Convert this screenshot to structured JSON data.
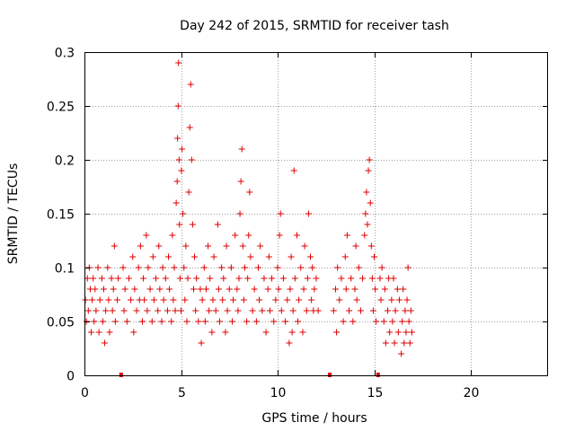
{
  "chart_data": {
    "type": "scatter",
    "title": "Day 242 of 2015, SRMTID for receiver tash",
    "xlabel": "GPS time / hours",
    "ylabel": "SRMTID / TECUs",
    "xlim": [
      0,
      24
    ],
    "ylim": [
      0,
      0.3
    ],
    "xticks": [
      0,
      5,
      10,
      15,
      20
    ],
    "xtick_labels": [
      "0",
      "5",
      "10",
      "15",
      "20"
    ],
    "yticks": [
      0,
      0.05,
      0.1,
      0.15,
      0.2,
      0.25,
      0.3
    ],
    "ytick_labels": [
      "0",
      "0.05",
      "0.1",
      "0.15",
      "0.2",
      "0.25",
      "0.3"
    ],
    "grid": true,
    "marker": "plus",
    "color": "#e00000",
    "gap_markers_x": [
      1.9,
      12.7,
      15.2
    ],
    "series": [
      {
        "name": "SRMTID",
        "points": [
          [
            0.05,
            0.07
          ],
          [
            0.1,
            0.05
          ],
          [
            0.15,
            0.09
          ],
          [
            0.2,
            0.06
          ],
          [
            0.25,
            0.1
          ],
          [
            0.3,
            0.08
          ],
          [
            0.35,
            0.04
          ],
          [
            0.4,
            0.07
          ],
          [
            0.45,
            0.09
          ],
          [
            0.5,
            0.05
          ],
          [
            0.55,
            0.08
          ],
          [
            0.6,
            0.06
          ],
          [
            0.7,
            0.1
          ],
          [
            0.75,
            0.04
          ],
          [
            0.8,
            0.07
          ],
          [
            0.9,
            0.09
          ],
          [
            0.95,
            0.05
          ],
          [
            1.0,
            0.08
          ],
          [
            1.05,
            0.03
          ],
          [
            1.1,
            0.06
          ],
          [
            1.2,
            0.1
          ],
          [
            1.25,
            0.07
          ],
          [
            1.3,
            0.04
          ],
          [
            1.4,
            0.09
          ],
          [
            1.45,
            0.06
          ],
          [
            1.5,
            0.08
          ],
          [
            1.55,
            0.12
          ],
          [
            1.6,
            0.05
          ],
          [
            1.7,
            0.07
          ],
          [
            1.75,
            0.09
          ],
          [
            2.0,
            0.1
          ],
          [
            2.05,
            0.06
          ],
          [
            2.1,
            0.08
          ],
          [
            2.2,
            0.05
          ],
          [
            2.3,
            0.09
          ],
          [
            2.4,
            0.07
          ],
          [
            2.5,
            0.11
          ],
          [
            2.55,
            0.04
          ],
          [
            2.6,
            0.08
          ],
          [
            2.7,
            0.06
          ],
          [
            2.8,
            0.1
          ],
          [
            2.85,
            0.07
          ],
          [
            2.9,
            0.12
          ],
          [
            3.0,
            0.05
          ],
          [
            3.05,
            0.09
          ],
          [
            3.1,
            0.07
          ],
          [
            3.2,
            0.13
          ],
          [
            3.25,
            0.06
          ],
          [
            3.3,
            0.1
          ],
          [
            3.4,
            0.08
          ],
          [
            3.5,
            0.05
          ],
          [
            3.55,
            0.11
          ],
          [
            3.6,
            0.07
          ],
          [
            3.7,
            0.09
          ],
          [
            3.8,
            0.06
          ],
          [
            3.85,
            0.12
          ],
          [
            3.9,
            0.08
          ],
          [
            4.0,
            0.05
          ],
          [
            4.05,
            0.1
          ],
          [
            4.1,
            0.07
          ],
          [
            4.2,
            0.09
          ],
          [
            4.3,
            0.06
          ],
          [
            4.35,
            0.11
          ],
          [
            4.4,
            0.08
          ],
          [
            4.5,
            0.05
          ],
          [
            4.55,
            0.13
          ],
          [
            4.6,
            0.07
          ],
          [
            4.65,
            0.1
          ],
          [
            4.7,
            0.06
          ],
          [
            4.75,
            0.16
          ],
          [
            4.8,
            0.18
          ],
          [
            4.82,
            0.22
          ],
          [
            4.85,
            0.25
          ],
          [
            4.87,
            0.29
          ],
          [
            4.9,
            0.2
          ],
          [
            4.92,
            0.14
          ],
          [
            4.95,
            0.09
          ],
          [
            5.0,
            0.06
          ],
          [
            5.02,
            0.19
          ],
          [
            5.05,
            0.21
          ],
          [
            5.1,
            0.15
          ],
          [
            5.15,
            0.1
          ],
          [
            5.2,
            0.07
          ],
          [
            5.25,
            0.12
          ],
          [
            5.3,
            0.05
          ],
          [
            5.35,
            0.09
          ],
          [
            5.4,
            0.17
          ],
          [
            5.45,
            0.23
          ],
          [
            5.5,
            0.27
          ],
          [
            5.55,
            0.2
          ],
          [
            5.6,
            0.14
          ],
          [
            5.65,
            0.08
          ],
          [
            5.7,
            0.11
          ],
          [
            5.75,
            0.06
          ],
          [
            5.8,
            0.09
          ],
          [
            5.9,
            0.05
          ],
          [
            6.0,
            0.08
          ],
          [
            6.05,
            0.03
          ],
          [
            6.1,
            0.07
          ],
          [
            6.2,
            0.1
          ],
          [
            6.25,
            0.05
          ],
          [
            6.3,
            0.08
          ],
          [
            6.4,
            0.12
          ],
          [
            6.45,
            0.06
          ],
          [
            6.5,
            0.09
          ],
          [
            6.6,
            0.04
          ],
          [
            6.65,
            0.07
          ],
          [
            6.7,
            0.11
          ],
          [
            6.8,
            0.06
          ],
          [
            6.9,
            0.14
          ],
          [
            6.95,
            0.08
          ],
          [
            7.0,
            0.05
          ],
          [
            7.1,
            0.1
          ],
          [
            7.15,
            0.07
          ],
          [
            7.2,
            0.09
          ],
          [
            7.3,
            0.04
          ],
          [
            7.35,
            0.12
          ],
          [
            7.4,
            0.06
          ],
          [
            7.5,
            0.08
          ],
          [
            7.6,
            0.1
          ],
          [
            7.65,
            0.05
          ],
          [
            7.7,
            0.07
          ],
          [
            7.8,
            0.13
          ],
          [
            7.9,
            0.08
          ],
          [
            7.95,
            0.06
          ],
          [
            8.0,
            0.09
          ],
          [
            8.05,
            0.15
          ],
          [
            8.1,
            0.18
          ],
          [
            8.15,
            0.21
          ],
          [
            8.2,
            0.12
          ],
          [
            8.25,
            0.07
          ],
          [
            8.3,
            0.1
          ],
          [
            8.4,
            0.05
          ],
          [
            8.45,
            0.09
          ],
          [
            8.5,
            0.13
          ],
          [
            8.55,
            0.17
          ],
          [
            8.6,
            0.11
          ],
          [
            8.7,
            0.06
          ],
          [
            8.8,
            0.08
          ],
          [
            8.9,
            0.05
          ],
          [
            9.0,
            0.1
          ],
          [
            9.05,
            0.07
          ],
          [
            9.1,
            0.12
          ],
          [
            9.2,
            0.06
          ],
          [
            9.3,
            0.09
          ],
          [
            9.4,
            0.04
          ],
          [
            9.5,
            0.08
          ],
          [
            9.55,
            0.11
          ],
          [
            9.6,
            0.06
          ],
          [
            9.7,
            0.09
          ],
          [
            9.8,
            0.05
          ],
          [
            9.9,
            0.07
          ],
          [
            10.0,
            0.1
          ],
          [
            10.05,
            0.08
          ],
          [
            10.1,
            0.13
          ],
          [
            10.15,
            0.15
          ],
          [
            10.2,
            0.06
          ],
          [
            10.3,
            0.09
          ],
          [
            10.4,
            0.05
          ],
          [
            10.5,
            0.07
          ],
          [
            10.6,
            0.03
          ],
          [
            10.65,
            0.08
          ],
          [
            10.7,
            0.11
          ],
          [
            10.75,
            0.04
          ],
          [
            10.8,
            0.06
          ],
          [
            10.85,
            0.19
          ],
          [
            10.9,
            0.09
          ],
          [
            11.0,
            0.13
          ],
          [
            11.05,
            0.05
          ],
          [
            11.1,
            0.07
          ],
          [
            11.2,
            0.1
          ],
          [
            11.3,
            0.04
          ],
          [
            11.35,
            0.08
          ],
          [
            11.4,
            0.12
          ],
          [
            11.5,
            0.06
          ],
          [
            11.55,
            0.09
          ],
          [
            11.6,
            0.15
          ],
          [
            11.7,
            0.11
          ],
          [
            11.75,
            0.07
          ],
          [
            11.8,
            0.1
          ],
          [
            11.85,
            0.06
          ],
          [
            11.9,
            0.08
          ],
          [
            12.0,
            0.09
          ],
          [
            12.1,
            0.06
          ],
          [
            12.9,
            0.06
          ],
          [
            13.0,
            0.08
          ],
          [
            13.05,
            0.04
          ],
          [
            13.1,
            0.1
          ],
          [
            13.2,
            0.07
          ],
          [
            13.3,
            0.09
          ],
          [
            13.4,
            0.05
          ],
          [
            13.5,
            0.11
          ],
          [
            13.55,
            0.08
          ],
          [
            13.6,
            0.13
          ],
          [
            13.7,
            0.06
          ],
          [
            13.8,
            0.09
          ],
          [
            13.9,
            0.05
          ],
          [
            14.0,
            0.08
          ],
          [
            14.05,
            0.12
          ],
          [
            14.1,
            0.07
          ],
          [
            14.2,
            0.1
          ],
          [
            14.3,
            0.06
          ],
          [
            14.4,
            0.09
          ],
          [
            14.5,
            0.13
          ],
          [
            14.55,
            0.15
          ],
          [
            14.6,
            0.17
          ],
          [
            14.65,
            0.14
          ],
          [
            14.7,
            0.19
          ],
          [
            14.75,
            0.2
          ],
          [
            14.8,
            0.16
          ],
          [
            14.85,
            0.12
          ],
          [
            14.9,
            0.09
          ],
          [
            14.95,
            0.06
          ],
          [
            15.0,
            0.11
          ],
          [
            15.05,
            0.08
          ],
          [
            15.1,
            0.05
          ],
          [
            15.3,
            0.09
          ],
          [
            15.35,
            0.07
          ],
          [
            15.4,
            0.1
          ],
          [
            15.5,
            0.05
          ],
          [
            15.55,
            0.08
          ],
          [
            15.6,
            0.03
          ],
          [
            15.7,
            0.06
          ],
          [
            15.75,
            0.09
          ],
          [
            15.8,
            0.04
          ],
          [
            15.9,
            0.07
          ],
          [
            15.95,
            0.05
          ],
          [
            16.0,
            0.09
          ],
          [
            16.05,
            0.03
          ],
          [
            16.1,
            0.06
          ],
          [
            16.2,
            0.08
          ],
          [
            16.25,
            0.04
          ],
          [
            16.3,
            0.07
          ],
          [
            16.4,
            0.02
          ],
          [
            16.45,
            0.05
          ],
          [
            16.5,
            0.08
          ],
          [
            16.55,
            0.03
          ],
          [
            16.6,
            0.06
          ],
          [
            16.65,
            0.04
          ],
          [
            16.7,
            0.07
          ],
          [
            16.75,
            0.1
          ],
          [
            16.8,
            0.05
          ],
          [
            16.85,
            0.03
          ],
          [
            16.9,
            0.06
          ],
          [
            16.95,
            0.04
          ]
        ]
      }
    ]
  }
}
